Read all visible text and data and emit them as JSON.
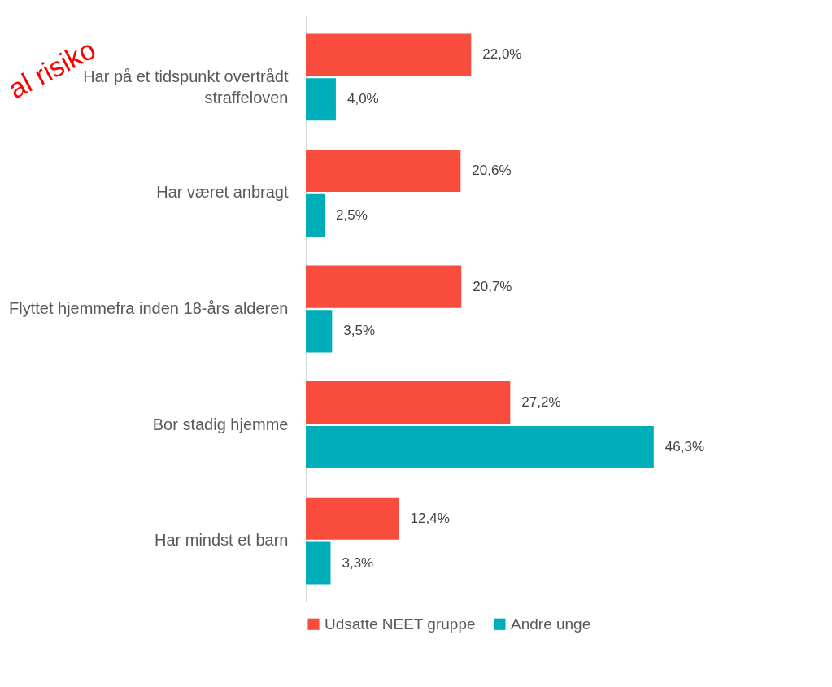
{
  "chart_data": {
    "type": "bar",
    "orientation": "horizontal",
    "categories": [
      "Har på et tidspunkt overtrådt straffeloven",
      "Har været anbragt",
      "Flyttet hjemmefra inden 18-års alderen",
      "Bor stadig hjemme",
      "Har mindst et barn"
    ],
    "series": [
      {
        "name": "Udsatte NEET gruppe",
        "color": "#f84c3c",
        "values": [
          22.0,
          20.6,
          20.7,
          27.2,
          12.4
        ],
        "value_labels": [
          "22,0%",
          "20,6%",
          "20,7%",
          "27,2%",
          "12,4%"
        ]
      },
      {
        "name": "Andre unge",
        "color": "#00aeb9",
        "values": [
          4.0,
          2.5,
          3.5,
          46.3,
          3.3
        ],
        "value_labels": [
          "4,0%",
          "2,5%",
          "3,5%",
          "46,3%",
          "3,3%"
        ]
      }
    ],
    "annotations": [
      "al risiko"
    ],
    "legend": "bottom",
    "grid": false
  }
}
